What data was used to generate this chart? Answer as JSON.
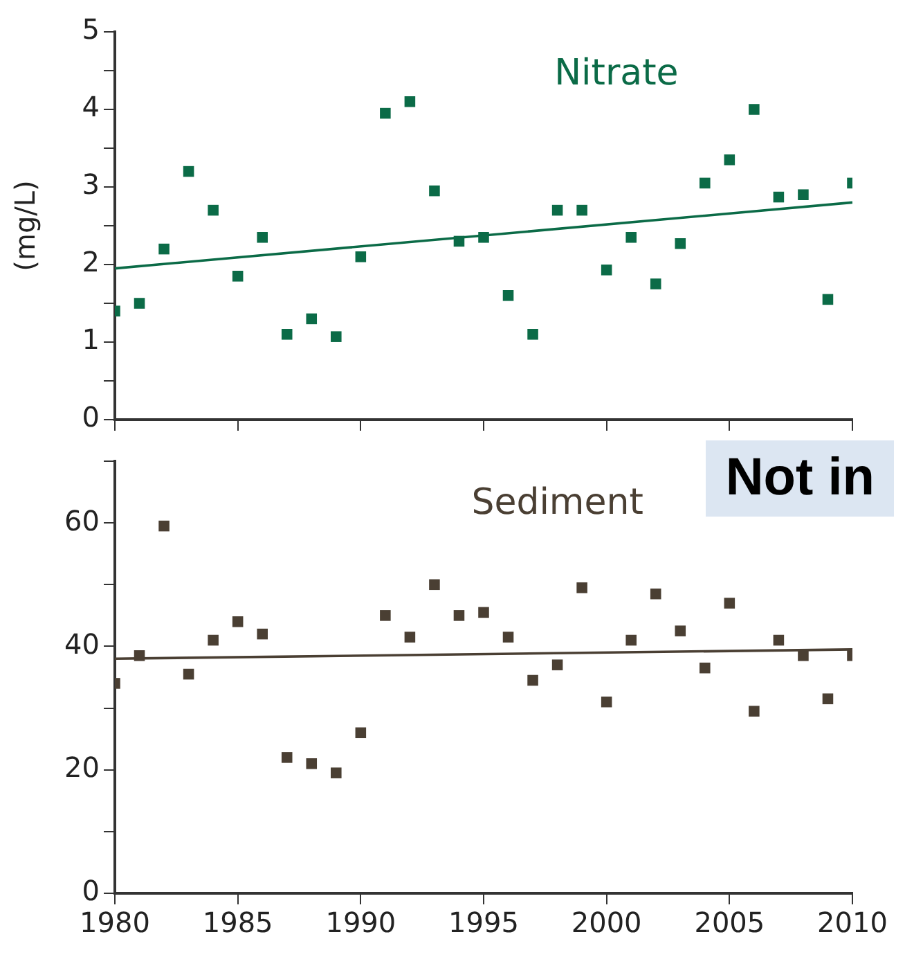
{
  "chart_data": [
    {
      "type": "scatter",
      "title": "Nitrate",
      "ylabel": "(mg/L)",
      "xlim": [
        1980,
        2010
      ],
      "xticks": [
        1980,
        1985,
        1990,
        1995,
        2000,
        2005,
        2010
      ],
      "ylim": [
        0,
        5
      ],
      "yticks": [
        0,
        {
          "value": 0.5,
          "label": null
        },
        1,
        {
          "value": 1.5,
          "label": null
        },
        2,
        {
          "value": 2.5,
          "label": null
        },
        3,
        {
          "value": 3.5,
          "label": null
        },
        4,
        {
          "value": 4.5,
          "label": null
        },
        5
      ],
      "tick_labels": "y",
      "grid": false,
      "legend": false,
      "series": [
        {
          "color": "#0b6b47",
          "marker": "square",
          "x": [
            1980,
            1981,
            1982,
            1983,
            1984,
            1985,
            1986,
            1987,
            1988,
            1989,
            1990,
            1991,
            1992,
            1993,
            1994,
            1995,
            1996,
            1997,
            1998,
            1999,
            2000,
            2001,
            2002,
            2003,
            2004,
            2005,
            2006,
            2007,
            2008,
            2009,
            2010
          ],
          "values": [
            1.4,
            1.5,
            2.2,
            3.2,
            2.7,
            1.85,
            2.35,
            1.1,
            1.3,
            1.07,
            2.1,
            3.95,
            4.1,
            2.95,
            2.3,
            2.35,
            1.6,
            1.1,
            2.7,
            2.7,
            1.93,
            2.35,
            1.75,
            2.27,
            3.05,
            3.35,
            4.0,
            2.87,
            2.9,
            1.55,
            3.05
          ]
        },
        {
          "type": "line",
          "marker": "none",
          "color": "#0b6b47",
          "x": [
            1980,
            2010
          ],
          "values": [
            1.95,
            2.8
          ]
        }
      ]
    },
    {
      "type": "scatter",
      "title": "Sediment",
      "annotations": [
        "Not in"
      ],
      "xlim": [
        1980,
        2010
      ],
      "xticks": [
        1980,
        1985,
        1990,
        1995,
        2000,
        2005,
        2010
      ],
      "ylim": [
        0,
        70
      ],
      "yticks": [
        0,
        {
          "value": 10,
          "label": null
        },
        20,
        {
          "value": 30,
          "label": null
        },
        40,
        {
          "value": 50,
          "label": null
        },
        60,
        {
          "value": 70,
          "label": null
        }
      ],
      "grid": false,
      "legend": false,
      "series": [
        {
          "color": "#4a3f33",
          "marker": "square",
          "x": [
            1980,
            1981,
            1982,
            1983,
            1984,
            1985,
            1986,
            1987,
            1988,
            1989,
            1990,
            1991,
            1992,
            1993,
            1994,
            1995,
            1996,
            1997,
            1998,
            1999,
            2000,
            2001,
            2002,
            2003,
            2004,
            2005,
            2006,
            2007,
            2008,
            2009,
            2010
          ],
          "values": [
            34,
            38.5,
            59.5,
            35.5,
            41,
            44,
            42,
            22,
            21,
            19.5,
            26,
            45,
            41.5,
            50,
            45,
            45.5,
            41.5,
            34.5,
            37,
            49.5,
            31,
            41,
            48.5,
            42.5,
            36.5,
            47,
            29.5,
            41,
            38.5,
            31.5,
            38.5
          ]
        },
        {
          "type": "line",
          "marker": "none",
          "color": "#4a3f33",
          "x": [
            1980,
            2010
          ],
          "values": [
            38,
            39.5
          ]
        }
      ]
    }
  ]
}
